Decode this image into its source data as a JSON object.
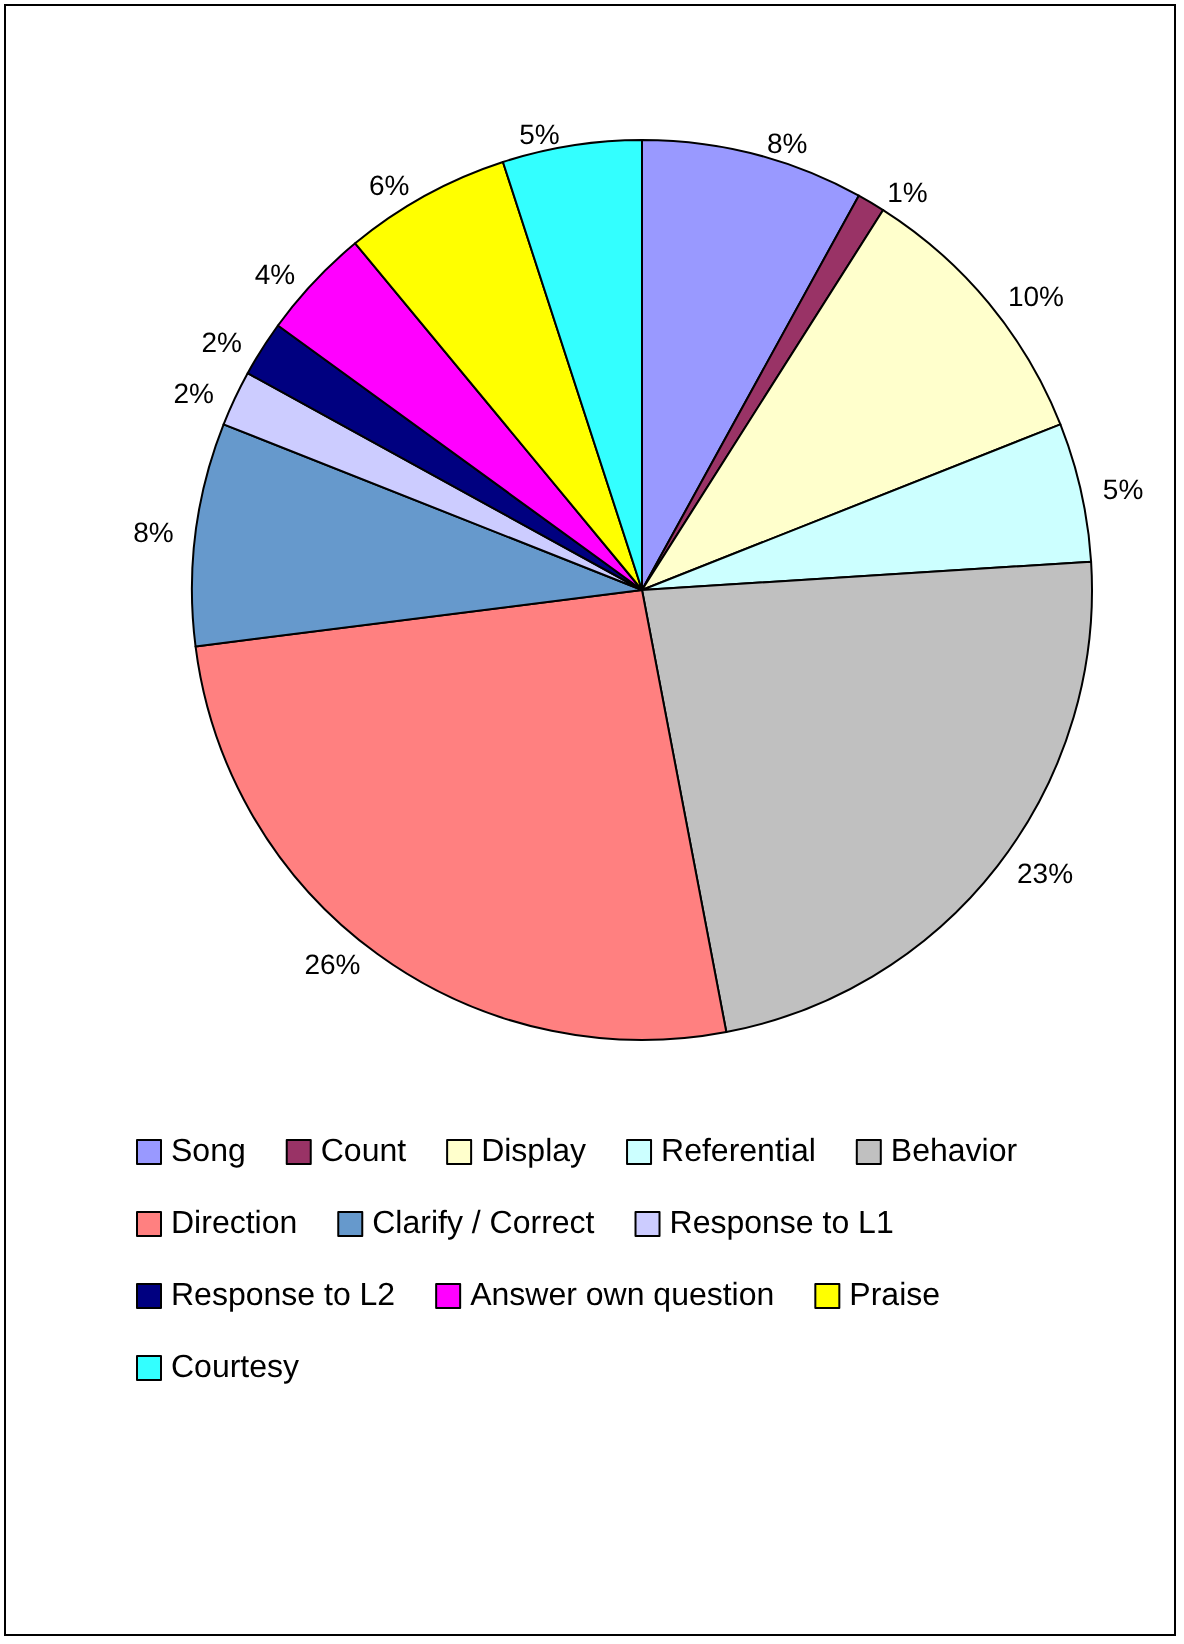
{
  "chart_data": {
    "type": "pie",
    "categories": [
      "Song",
      "Count",
      "Display",
      "Referential",
      "Behavior",
      "Direction",
      "Clarify / Correct",
      "Response to L1",
      "Response to L2",
      "Answer own question",
      "Praise",
      "Courtesy"
    ],
    "values": [
      8,
      1,
      10,
      5,
      23,
      26,
      8,
      2,
      2,
      4,
      6,
      5
    ],
    "value_labels": [
      "8%",
      "1%",
      "10%",
      "5%",
      "23%",
      "26%",
      "8%",
      "2%",
      "2%",
      "4%",
      "6%",
      "5%"
    ],
    "colors": [
      "#9999ff",
      "#993366",
      "#ffffcc",
      "#ccffff",
      "#c0c0c0",
      "#ff8080",
      "#6699cc",
      "#ccccff",
      "#000080",
      "#ff00ff",
      "#ffff00",
      "#33ffff"
    ],
    "legend": "bottom"
  }
}
